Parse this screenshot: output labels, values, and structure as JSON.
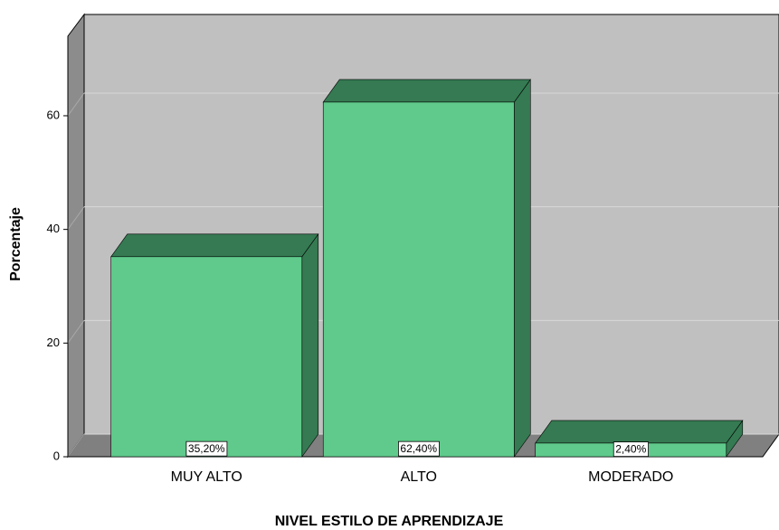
{
  "chart_data": {
    "type": "bar3d",
    "x_label": "NIVEL ESTILO DE APRENDIZAJE",
    "y_label": "Porcentaje",
    "categories": [
      "MUY ALTO",
      "ALTO",
      "MODERADO"
    ],
    "values": [
      35.2,
      62.4,
      2.4
    ],
    "value_labels": [
      "35,20%",
      "62,40%",
      "2,40%"
    ],
    "color": "#5fca8b",
    "ylim": [
      0,
      74
    ],
    "yticks": [
      0,
      20,
      40,
      60
    ],
    "grid": true
  }
}
